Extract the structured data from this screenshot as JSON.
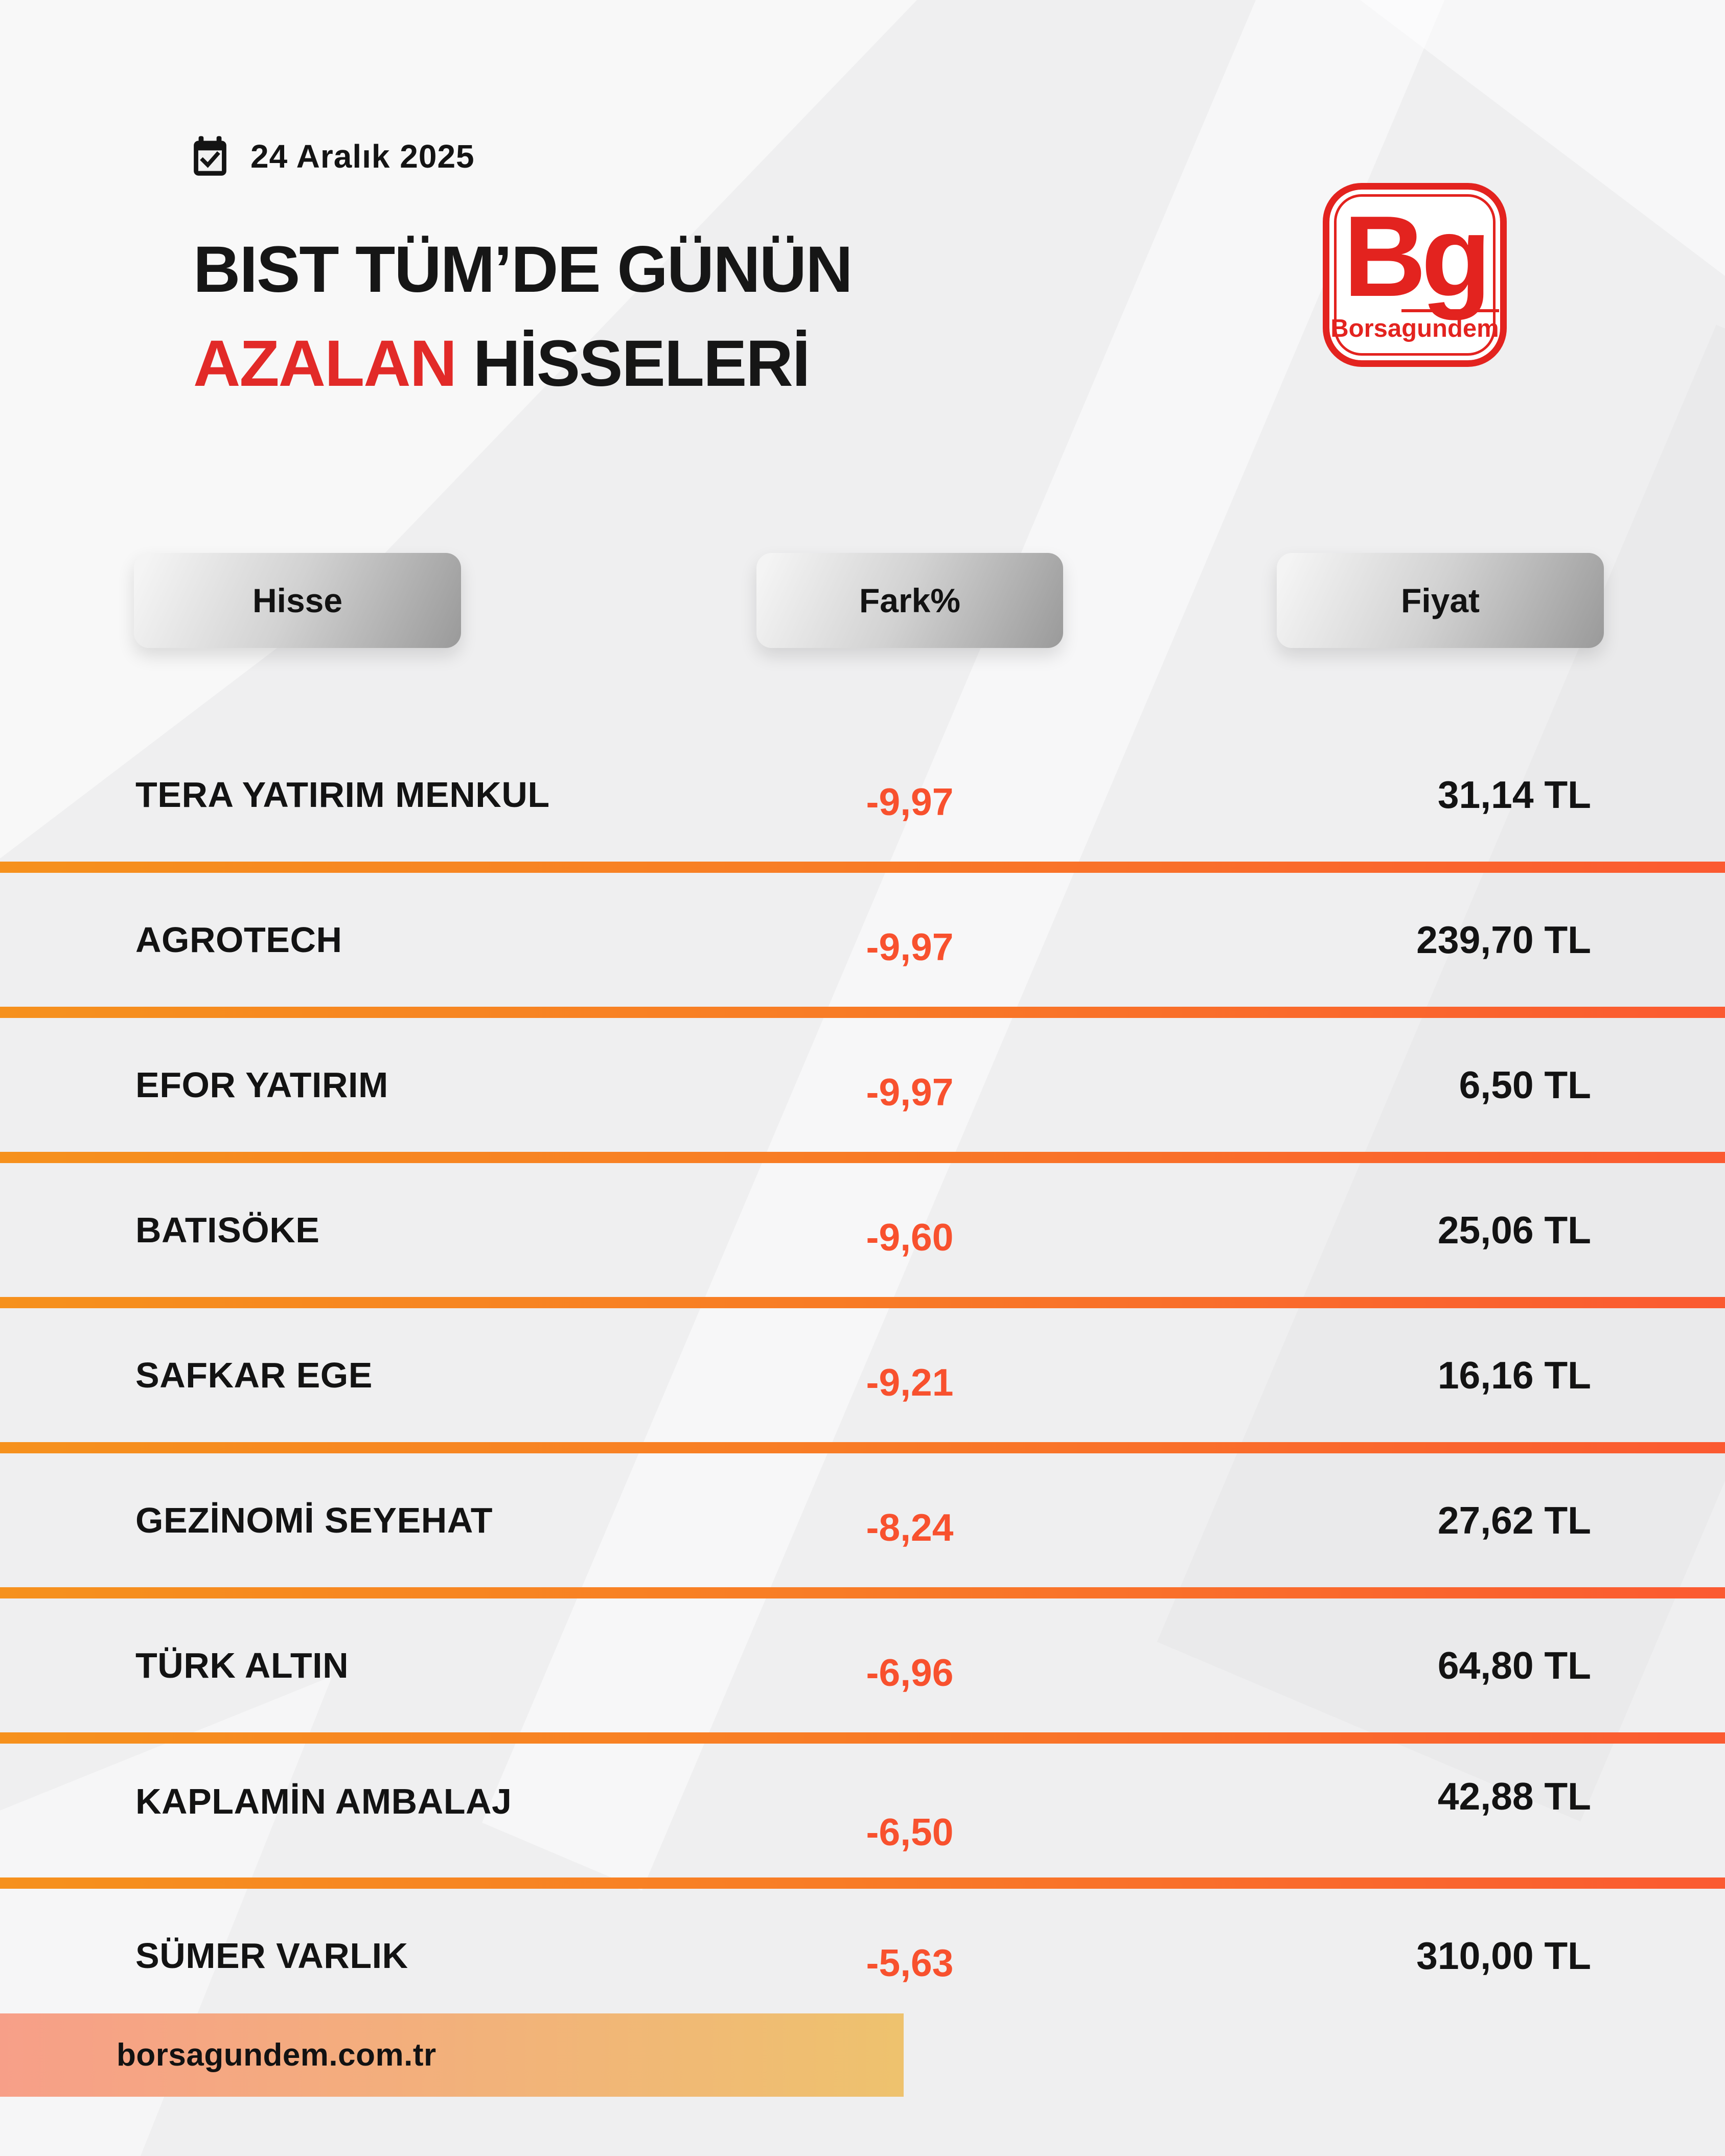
{
  "meta": {
    "date_label": "24 Aralık 2025"
  },
  "header": {
    "title_line1": "BIST TÜM’DE GÜNÜN",
    "title_highlight": "AZALAN",
    "title_line2_rest": " HİSSELERİ"
  },
  "logo": {
    "monogram": "Bg",
    "wordmark_prefix": "Borsa",
    "wordmark_suffix": "gundem"
  },
  "table": {
    "headers": [
      {
        "label": "Hisse"
      },
      {
        "label": "Fark%"
      },
      {
        "label": "Fiyat"
      }
    ],
    "rows": [
      {
        "name": "TERA YATIRIM MENKUL",
        "change": "-9,97",
        "price": "31,14 TL"
      },
      {
        "name": "AGROTECH",
        "change": "-9,97",
        "price": "239,70 TL"
      },
      {
        "name": "EFOR YATIRIM",
        "change": "-9,97",
        "price": "6,50 TL"
      },
      {
        "name": "BATISÖKE",
        "change": "-9,60",
        "price": "25,06 TL"
      },
      {
        "name": "SAFKAR EGE",
        "change": "-9,21",
        "price": "16,16 TL"
      },
      {
        "name": "GEZİNOMİ SEYEHAT",
        "change": "-8,24",
        "price": "27,62 TL"
      },
      {
        "name": "TÜRK ALTIN",
        "change": "-6,96",
        "price": "64,80 TL"
      },
      {
        "name": "KAPLAMİN AMBALAJ",
        "change": "-6,50",
        "price": "42,88 TL"
      },
      {
        "name": "SÜMER VARLIK",
        "change": "-5,63",
        "price": "310,00 TL"
      }
    ]
  },
  "footer": {
    "website": "borsagundem.com.tr"
  },
  "colors": {
    "background": "#efeff0",
    "text": "#161616",
    "accent_red": "#e22a28",
    "logo_red": "#e3231f",
    "change_red": "#f8512e",
    "divider_start": "#f6911d",
    "divider_end": "#fb5a31",
    "footer_start": "#f79f88",
    "footer_end": "#eec26e"
  },
  "chart_data": {
    "type": "table",
    "title": "BIST TÜM’DE GÜNÜN AZALAN HİSSELERİ",
    "date": "24 Aralık 2025",
    "columns": [
      "Hisse",
      "Fark%",
      "Fiyat"
    ],
    "rows": [
      [
        "TERA YATIRIM MENKUL",
        "-9,97",
        "31,14 TL"
      ],
      [
        "AGROTECH",
        "-9,97",
        "239,70 TL"
      ],
      [
        "EFOR YATIRIM",
        "-9,97",
        "6,50 TL"
      ],
      [
        "BATISÖKE",
        "-9,60",
        "25,06 TL"
      ],
      [
        "SAFKAR EGE",
        "-9,21",
        "16,16 TL"
      ],
      [
        "GEZİNOMİ SEYEHAT",
        "-8,24",
        "27,62 TL"
      ],
      [
        "TÜRK ALTIN",
        "-6,96",
        "64,80 TL"
      ],
      [
        "KAPLAMİN AMBALAJ",
        "-6,50",
        "42,88 TL"
      ],
      [
        "SÜMER VARLIK",
        "-5,63",
        "310,00 TL"
      ]
    ],
    "changes_percent": [
      -9.97,
      -9.97,
      -9.97,
      -9.6,
      -9.21,
      -8.24,
      -6.96,
      -6.5,
      -5.63
    ],
    "prices_tl": [
      31.14,
      239.7,
      6.5,
      25.06,
      16.16,
      27.62,
      64.8,
      42.88,
      310.0
    ],
    "source": "borsagundem.com.tr"
  }
}
